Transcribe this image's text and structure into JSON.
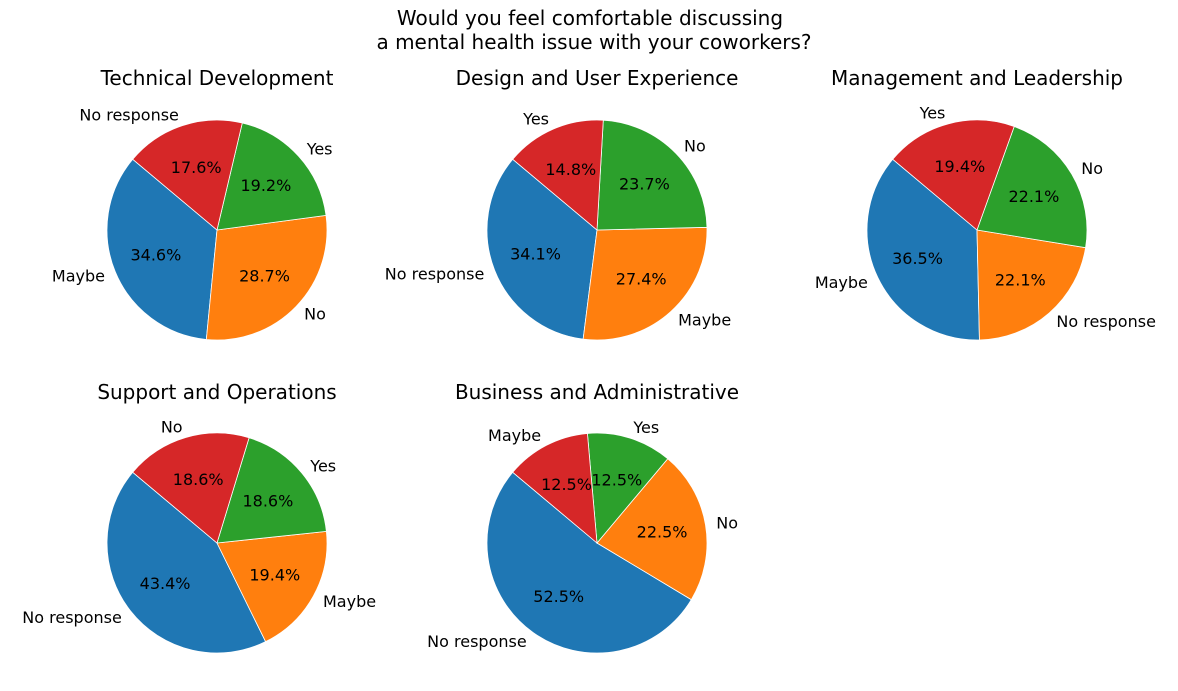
{
  "chart_data": {
    "type": "pie",
    "title_lines": [
      "Would you feel comfortable discussing",
      "a mental health issue with your coworkers?"
    ],
    "colors": [
      "#1f77b4",
      "#ff7f0e",
      "#2ca02c",
      "#d62728"
    ],
    "charts": [
      {
        "title": "Technical Development",
        "labels": [
          "Maybe",
          "No",
          "Yes",
          "No response"
        ],
        "values": [
          34.6,
          28.7,
          19.2,
          17.6
        ],
        "pct_labels": [
          "34.6%",
          "28.7%",
          "19.2%",
          "17.6%"
        ]
      },
      {
        "title": "Design and User Experience",
        "labels": [
          "No response",
          "Maybe",
          "No",
          "Yes"
        ],
        "values": [
          34.1,
          27.4,
          23.7,
          14.8
        ],
        "pct_labels": [
          "34.1%",
          "27.4%",
          "23.7%",
          "14.8%"
        ]
      },
      {
        "title": "Management and Leadership",
        "labels": [
          "Maybe",
          "No response",
          "No",
          "Yes"
        ],
        "values": [
          36.5,
          22.1,
          22.1,
          19.4
        ],
        "pct_labels": [
          "36.5%",
          "22.1%",
          "22.1%",
          "19.4%"
        ]
      },
      {
        "title": "Support and Operations",
        "labels": [
          "No response",
          "Maybe",
          "Yes",
          "No"
        ],
        "values": [
          43.4,
          19.4,
          18.6,
          18.6
        ],
        "pct_labels": [
          "43.4%",
          "19.4%",
          "18.6%",
          "18.6%"
        ]
      },
      {
        "title": "Business and Administrative",
        "labels": [
          "No response",
          "No",
          "Yes",
          "Maybe"
        ],
        "values": [
          52.5,
          22.5,
          12.5,
          12.5
        ],
        "pct_labels": [
          "52.5%",
          "22.5%",
          "12.5%",
          "12.5%"
        ]
      }
    ]
  }
}
